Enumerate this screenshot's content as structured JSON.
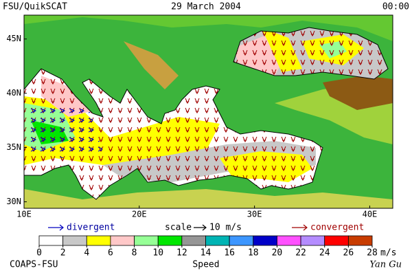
{
  "header": {
    "left": "FSU/QuikSCAT",
    "center": "29 March 2004",
    "right": "00:00"
  },
  "map": {
    "lon_range": [
      10,
      42
    ],
    "lat_range": [
      29.4,
      47.2
    ],
    "lon_ticks": [
      {
        "value": 10,
        "label": "10E"
      },
      {
        "value": 20,
        "label": "20E"
      },
      {
        "value": 30,
        "label": "30E"
      },
      {
        "value": 40,
        "label": "40E"
      }
    ],
    "lat_ticks": [
      {
        "value": 30,
        "label": "30N"
      },
      {
        "value": 35,
        "label": "35N"
      },
      {
        "value": 40,
        "label": "40N"
      },
      {
        "value": 45,
        "label": "45N"
      }
    ]
  },
  "legend": {
    "divergent": "divergent",
    "scale": "scale",
    "scale_value": "10 m/s",
    "convergent": "convergent"
  },
  "colorbar": {
    "levels": [
      0,
      2,
      4,
      6,
      8,
      10,
      12,
      14,
      16,
      18,
      20,
      22,
      24,
      26,
      28
    ],
    "colors": [
      "#ffffff",
      "#c8c8c8",
      "#ffff00",
      "#ffc8c8",
      "#96ff96",
      "#00e600",
      "#969696",
      "#00b4b4",
      "#3c96ff",
      "#0000c8",
      "#ff50ff",
      "#b48cff",
      "#ff0000",
      "#c83c00",
      "#000000"
    ],
    "unit": "m/s",
    "title": "Speed"
  },
  "footer": {
    "left": "COAPS-FSU",
    "right": "Yan Gu"
  }
}
